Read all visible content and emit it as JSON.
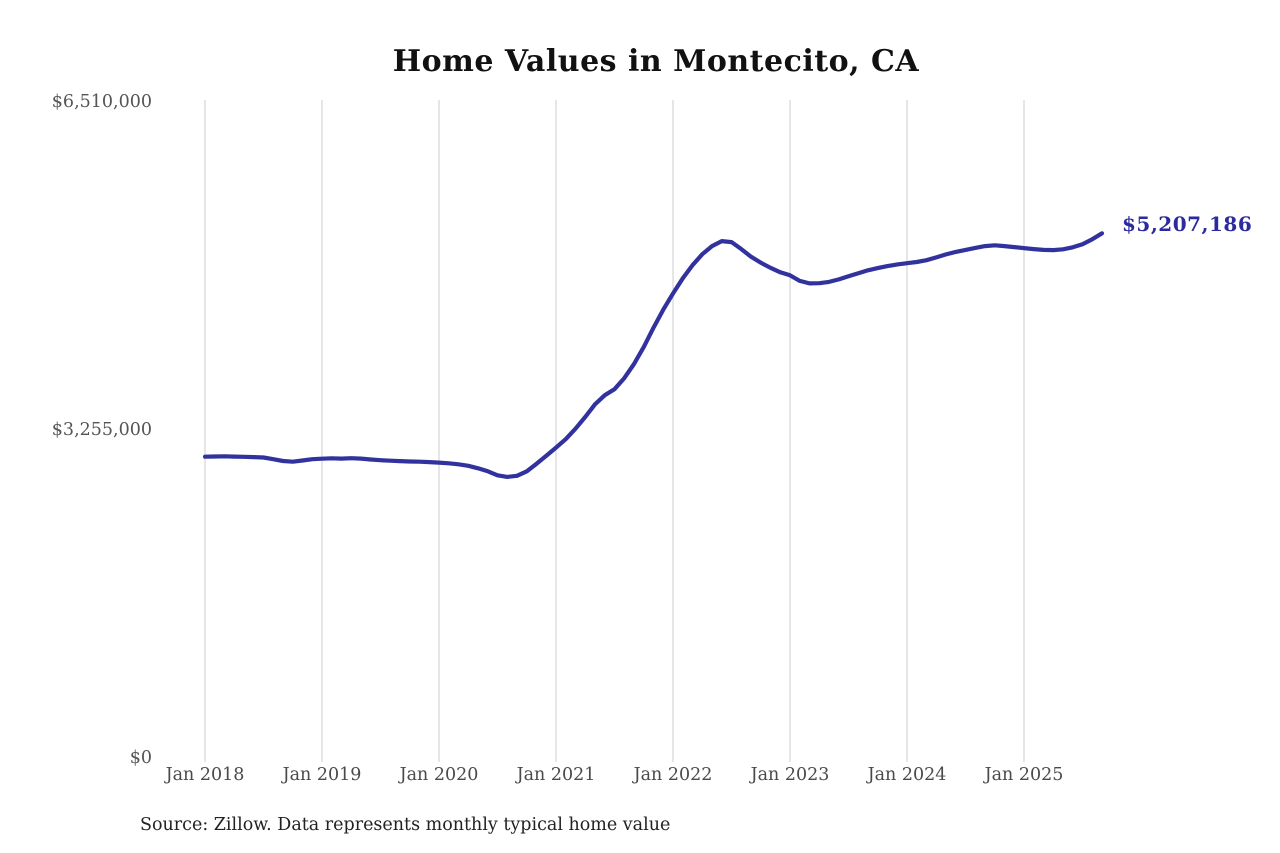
{
  "chart_data": {
    "type": "line",
    "title": "Home Values in Montecito, CA",
    "source_note": "Source: Zillow. Data represents monthly typical home value",
    "end_label": "$5,207,186",
    "end_value": 5207186,
    "series_name": "Monthly typical home value",
    "legend_position": "none",
    "grid": "vertical-yearly-gridlines",
    "line_color": "#32329e",
    "end_label_color": "#2b2b9e",
    "gridline_color": "#cccccc",
    "ylim": [
      0,
      6510000
    ],
    "y_ticks": [
      {
        "label": "$0",
        "value": 0
      },
      {
        "label": "$3,255,000",
        "value": 3255000
      },
      {
        "label": "$6,510,000",
        "value": 6510000
      }
    ],
    "x_tick_labels": [
      "Jan 2018",
      "Jan 2019",
      "Jan 2020",
      "Jan 2021",
      "Jan 2022",
      "Jan 2023",
      "Jan 2024",
      "Jan 2025"
    ],
    "x": [
      "2018-01",
      "2018-02",
      "2018-03",
      "2018-04",
      "2018-05",
      "2018-06",
      "2018-07",
      "2018-08",
      "2018-09",
      "2018-10",
      "2018-11",
      "2018-12",
      "2019-01",
      "2019-02",
      "2019-03",
      "2019-04",
      "2019-05",
      "2019-06",
      "2019-07",
      "2019-08",
      "2019-09",
      "2019-10",
      "2019-11",
      "2019-12",
      "2020-01",
      "2020-02",
      "2020-03",
      "2020-04",
      "2020-05",
      "2020-06",
      "2020-07",
      "2020-08",
      "2020-09",
      "2020-10",
      "2020-11",
      "2020-12",
      "2021-01",
      "2021-02",
      "2021-03",
      "2021-04",
      "2021-05",
      "2021-06",
      "2021-07",
      "2021-08",
      "2021-09",
      "2021-10",
      "2021-11",
      "2021-12",
      "2022-01",
      "2022-02",
      "2022-03",
      "2022-04",
      "2022-05",
      "2022-06",
      "2022-07",
      "2022-08",
      "2022-09",
      "2022-10",
      "2022-11",
      "2022-12",
      "2023-01",
      "2023-02",
      "2023-03",
      "2023-04",
      "2023-05",
      "2023-06",
      "2023-07",
      "2023-08",
      "2023-09",
      "2023-10",
      "2023-11",
      "2023-12",
      "2024-01",
      "2024-02",
      "2024-03",
      "2024-04",
      "2024-05",
      "2024-06",
      "2024-07",
      "2024-08",
      "2024-09",
      "2024-10",
      "2024-11",
      "2024-12",
      "2025-01",
      "2025-02",
      "2025-03",
      "2025-04",
      "2025-05",
      "2025-06",
      "2025-07",
      "2025-08",
      "2025-09"
    ],
    "values": [
      2990000,
      2992000,
      2994000,
      2991000,
      2989000,
      2986000,
      2982000,
      2965000,
      2947000,
      2940000,
      2952000,
      2965000,
      2970000,
      2974000,
      2971000,
      2975000,
      2971000,
      2962000,
      2955000,
      2950000,
      2946000,
      2942000,
      2940000,
      2936000,
      2931000,
      2925000,
      2915000,
      2900000,
      2875000,
      2845000,
      2805000,
      2790000,
      2800000,
      2845000,
      2920000,
      3000000,
      3080000,
      3165000,
      3268000,
      3385000,
      3510000,
      3600000,
      3660000,
      3770000,
      3910000,
      4080000,
      4270000,
      4450000,
      4610000,
      4760000,
      4890000,
      5000000,
      5080000,
      5130000,
      5120000,
      5050000,
      4975000,
      4915000,
      4865000,
      4820000,
      4790000,
      4735000,
      4710000,
      4712000,
      4725000,
      4750000,
      4780000,
      4810000,
      4840000,
      4862000,
      4882000,
      4898000,
      4910000,
      4922000,
      4940000,
      4968000,
      4998000,
      5022000,
      5042000,
      5062000,
      5080000,
      5088000,
      5080000,
      5070000,
      5060000,
      5050000,
      5042000,
      5040000,
      5048000,
      5068000,
      5098000,
      5148000,
      5207186
    ]
  }
}
